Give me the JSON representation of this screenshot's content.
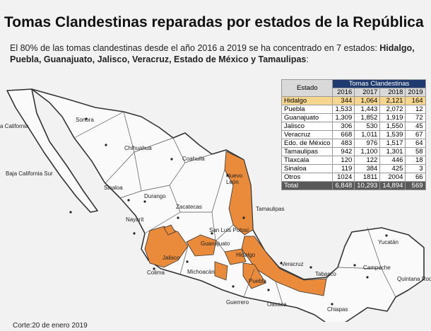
{
  "header": {
    "title": "Tomas Clandestinas reparadas por estados de la República",
    "intro": "El 80% de las tomas clandestinas desde el año 2016 a 2019 se ha concentrado en 7 estados: ",
    "intro_states": "Hidalgo, Puebla, Guanajuato, Jalisco, Veracruz, Estado de México y Tamaulipas",
    "intro_end": ":"
  },
  "table": {
    "state_header": "Estado",
    "group_header": "Tomas Clandestinas",
    "years": [
      "2016",
      "2017",
      "2018",
      "2019"
    ],
    "rows": [
      [
        "Hidalgo",
        "344",
        "1,064",
        "2,121",
        "164"
      ],
      [
        "Puebla",
        "1,533",
        "1,443",
        "2,072",
        "12"
      ],
      [
        "Guanajuato",
        "1,309",
        "1,852",
        "1,919",
        "72"
      ],
      [
        "Jalisco",
        "306",
        "530",
        "1,550",
        "45"
      ],
      [
        "Veracruz",
        "668",
        "1,011",
        "1,539",
        "67"
      ],
      [
        "Edo. de México",
        "483",
        "976",
        "1,517",
        "64"
      ],
      [
        "Tamaulipas",
        "942",
        "1,100",
        "1,301",
        "58"
      ],
      [
        "Tlaxcala",
        "120",
        "122",
        "446",
        "18"
      ],
      [
        "Sinaloa",
        "119",
        "384",
        "425",
        "3"
      ],
      [
        "Otros",
        "1024",
        "1811",
        "2004",
        "66"
      ]
    ],
    "total": [
      "Total",
      "6,848",
      "10,293",
      "14,894",
      "569"
    ]
  },
  "map": {
    "labels": [
      "a California",
      "Sonora",
      "Chihuahua",
      "Coahuila",
      "Nuevo",
      "León",
      "Baja California Sur",
      "Sinaloa",
      "Durango",
      "Zacatecas",
      "Tamaulipas",
      "San Luis Potosí",
      "Nayarit",
      "Guanajuato",
      "Hidalgo",
      "Jalisco",
      "Michoacán",
      "Colima",
      "Puebla",
      "Veracruz",
      "Guerrero",
      "Oaxaca",
      "Tabasco",
      "Campeche",
      "Yucatán",
      "Quintana Roo",
      "Chiapas"
    ]
  },
  "footer": "Corte:20 de enero 2019"
}
